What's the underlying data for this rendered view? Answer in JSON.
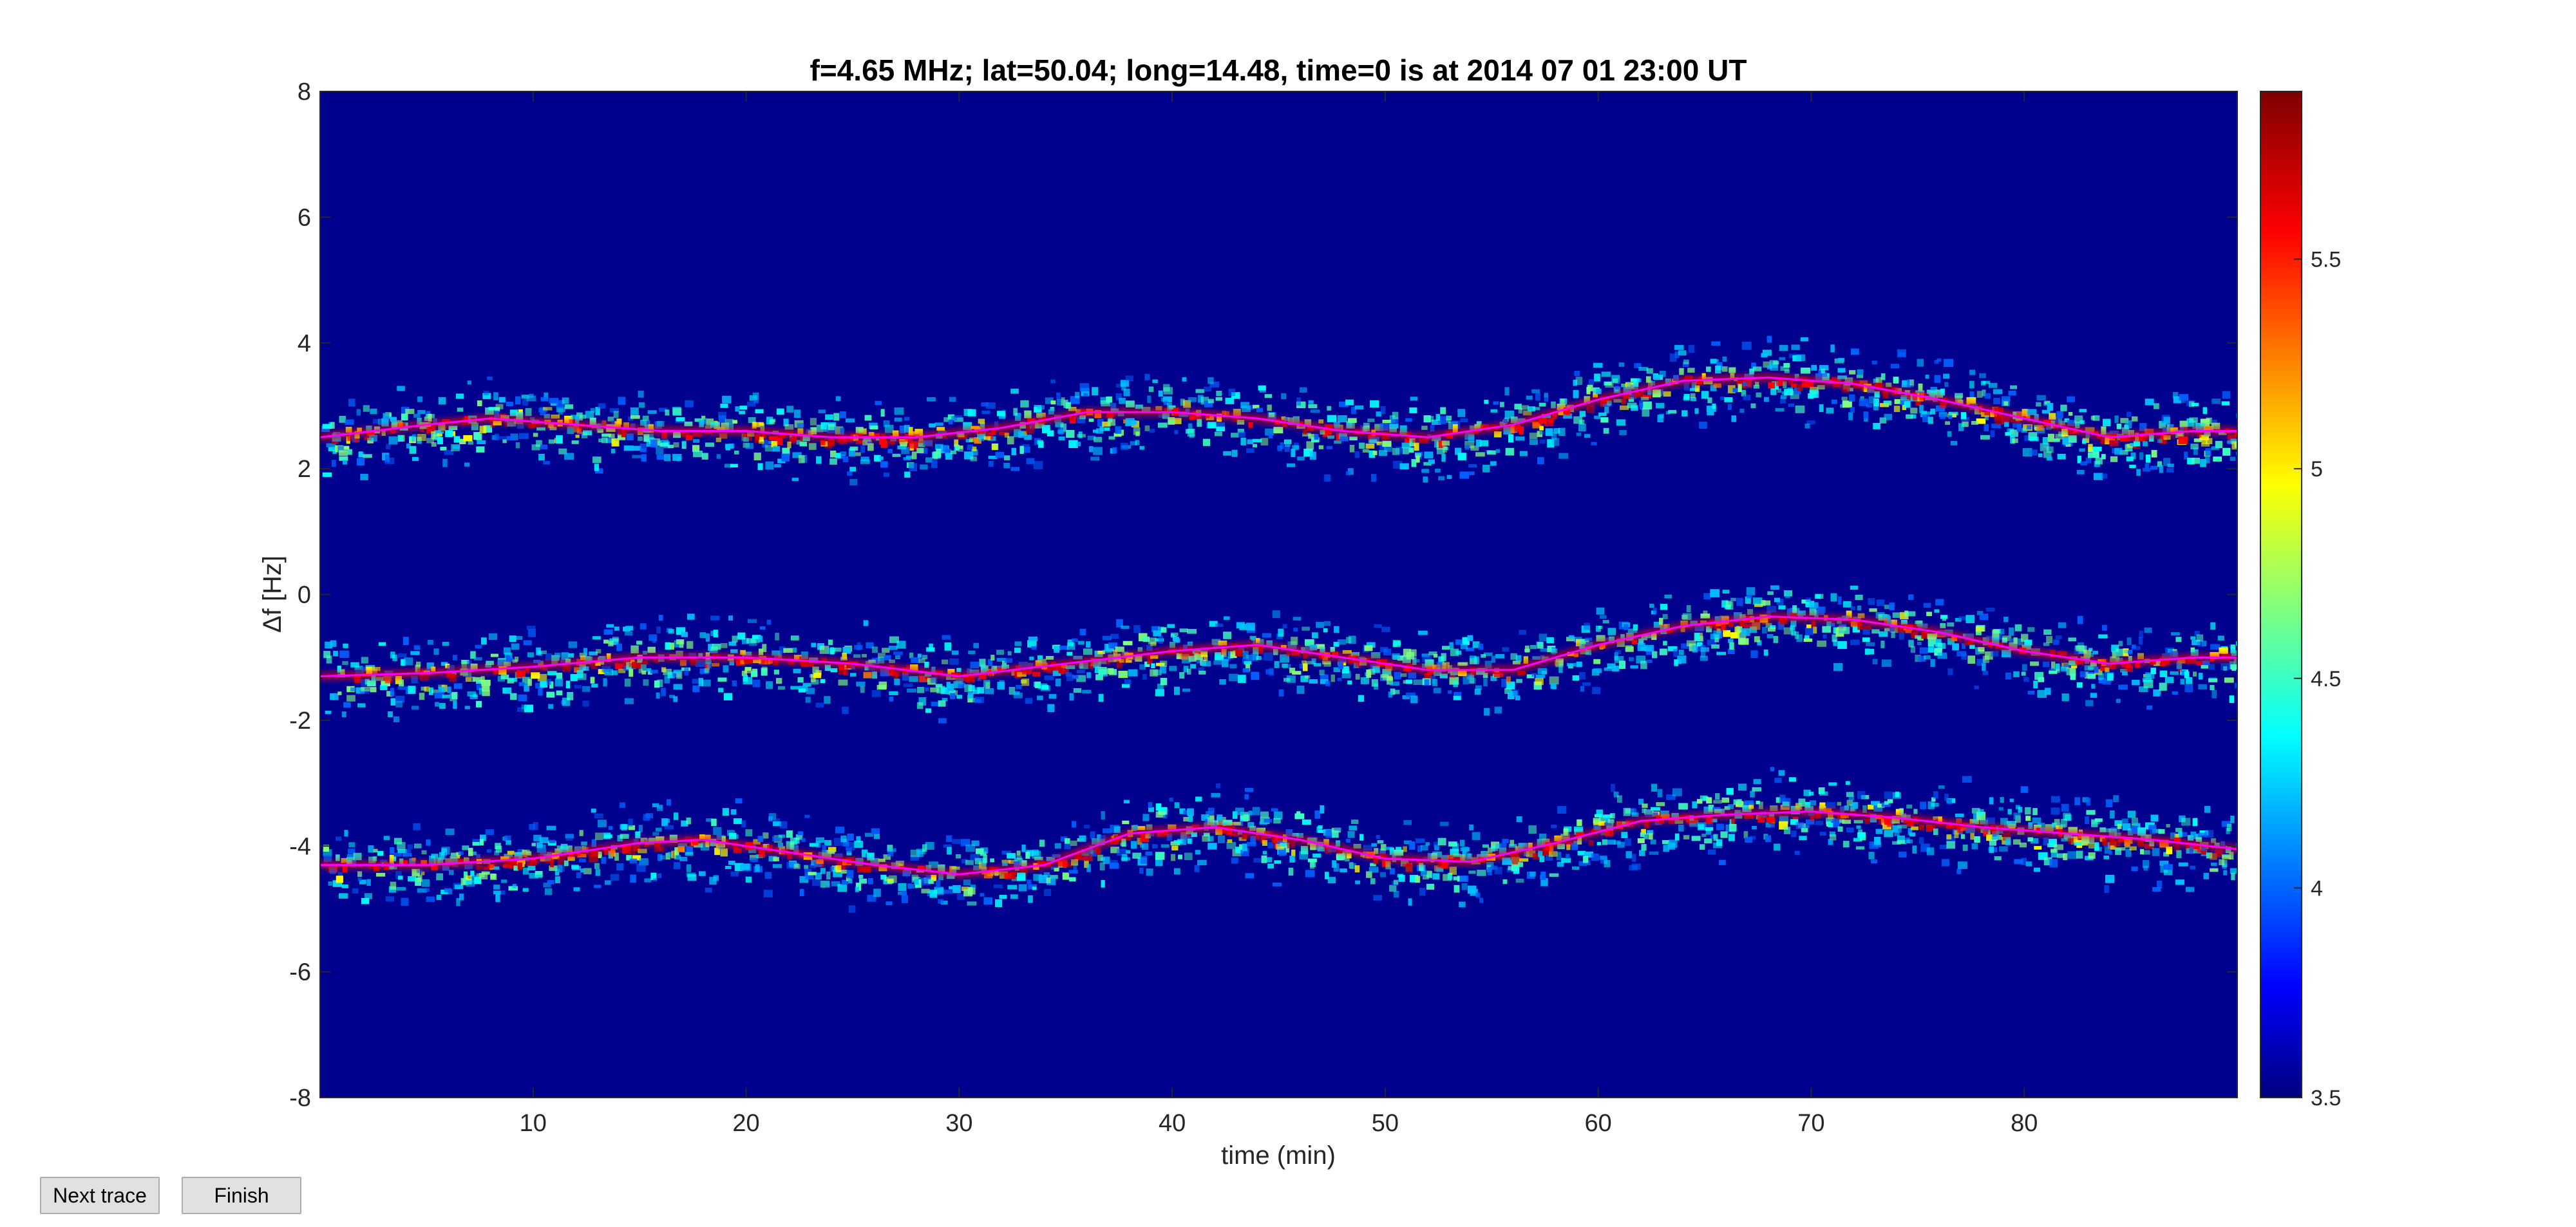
{
  "buttons": {
    "next_trace": "Next trace",
    "finish": "Finish"
  },
  "colors": {
    "background_field": "#00008f",
    "trace_line": "#ff00ff",
    "axis": "#262626",
    "colormap": [
      "#00007f",
      "#0000ff",
      "#00ffff",
      "#ffff00",
      "#ff0000",
      "#7f0000"
    ]
  },
  "chart_data": {
    "type": "heatmap",
    "title": "f=4.65 MHz;  lat=50.04; long=14.48, time=0 is at 2014 07 01 23:00 UT",
    "xlabel": "time (min)",
    "ylabel": "Δf [Hz]",
    "xlim": [
      0,
      90
    ],
    "ylim": [
      -8,
      8
    ],
    "xticks": [
      10,
      20,
      30,
      40,
      50,
      60,
      70,
      80
    ],
    "yticks": [
      -8,
      -6,
      -4,
      -2,
      0,
      2,
      4,
      6,
      8
    ],
    "colorbar": {
      "colormap": "jet",
      "clim": [
        3.5,
        5.9
      ],
      "ticks": [
        3.5,
        4,
        4.5,
        5,
        5.5
      ],
      "tick_labels": [
        "3.5",
        "4",
        "4.5",
        "5",
        "5.5"
      ]
    },
    "grid": false,
    "series": [
      {
        "x": [
          0,
          5,
          8,
          12,
          16,
          20,
          24,
          28,
          32,
          36,
          40,
          44,
          48,
          52,
          56,
          60,
          64,
          68,
          72,
          76,
          80,
          84,
          88,
          90
        ],
        "y": [
          2.5,
          2.7,
          2.8,
          2.7,
          2.6,
          2.6,
          2.5,
          2.5,
          2.65,
          2.9,
          2.9,
          2.8,
          2.6,
          2.5,
          2.7,
          3.1,
          3.4,
          3.45,
          3.35,
          3.1,
          2.8,
          2.5,
          2.6,
          2.6
        ]
      },
      {
        "x": [
          0,
          5,
          10,
          15,
          20,
          25,
          30,
          35,
          40,
          44,
          48,
          52,
          56,
          60,
          64,
          68,
          72,
          76,
          80,
          84,
          88,
          90
        ],
        "y": [
          -1.3,
          -1.25,
          -1.15,
          -1.0,
          -1.0,
          -1.1,
          -1.3,
          -1.1,
          -0.9,
          -0.8,
          -1.0,
          -1.2,
          -1.2,
          -0.8,
          -0.5,
          -0.35,
          -0.4,
          -0.6,
          -0.9,
          -1.1,
          -1.0,
          -1.0
        ]
      },
      {
        "x": [
          0,
          5,
          10,
          15,
          18,
          22,
          26,
          30,
          34,
          38,
          42,
          46,
          50,
          54,
          58,
          62,
          66,
          70,
          74,
          78,
          82,
          86,
          90
        ],
        "y": [
          -4.3,
          -4.3,
          -4.2,
          -3.95,
          -3.9,
          -4.1,
          -4.3,
          -4.45,
          -4.3,
          -3.8,
          -3.7,
          -3.9,
          -4.2,
          -4.25,
          -3.95,
          -3.6,
          -3.5,
          -3.45,
          -3.55,
          -3.7,
          -3.8,
          -3.9,
          -4.05
        ]
      }
    ]
  }
}
